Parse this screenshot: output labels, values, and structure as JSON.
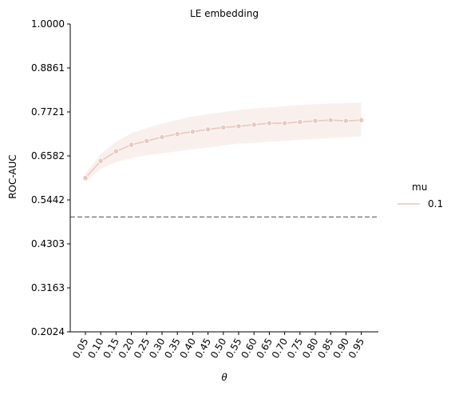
{
  "chart_data": {
    "type": "line",
    "title": "LE embedding",
    "xlabel": "θ",
    "ylabel": "ROC-AUC",
    "categories": [
      "0.05",
      "0.10",
      "0.15",
      "0.20",
      "0.25",
      "0.30",
      "0.35",
      "0.40",
      "0.45",
      "0.50",
      "0.55",
      "0.60",
      "0.65",
      "0.70",
      "0.75",
      "0.80",
      "0.85",
      "0.90",
      "0.95"
    ],
    "y_ticks": [
      "0.2024",
      "0.3163",
      "0.4303",
      "0.5442",
      "0.6582",
      "0.7721",
      "0.8861",
      "1.0000"
    ],
    "ylim": [
      0.2024,
      1.0
    ],
    "legend": {
      "title": "mu",
      "placement": "right"
    },
    "reference_line": {
      "y": 0.5,
      "style": "dashed",
      "color": "#808080"
    },
    "series": [
      {
        "name": "0.1",
        "color": "#e8c8bf",
        "values": [
          0.601,
          0.645,
          0.67,
          0.687,
          0.697,
          0.707,
          0.715,
          0.721,
          0.727,
          0.732,
          0.735,
          0.739,
          0.743,
          0.743,
          0.746,
          0.749,
          0.751,
          0.749,
          0.751
        ],
        "lower": [
          0.59,
          0.625,
          0.642,
          0.652,
          0.66,
          0.665,
          0.67,
          0.675,
          0.68,
          0.685,
          0.69,
          0.692,
          0.695,
          0.697,
          0.7,
          0.702,
          0.704,
          0.706,
          0.708
        ],
        "upper": [
          0.612,
          0.663,
          0.695,
          0.717,
          0.73,
          0.742,
          0.752,
          0.76,
          0.767,
          0.772,
          0.777,
          0.781,
          0.784,
          0.787,
          0.79,
          0.792,
          0.794,
          0.795,
          0.796
        ]
      }
    ]
  }
}
